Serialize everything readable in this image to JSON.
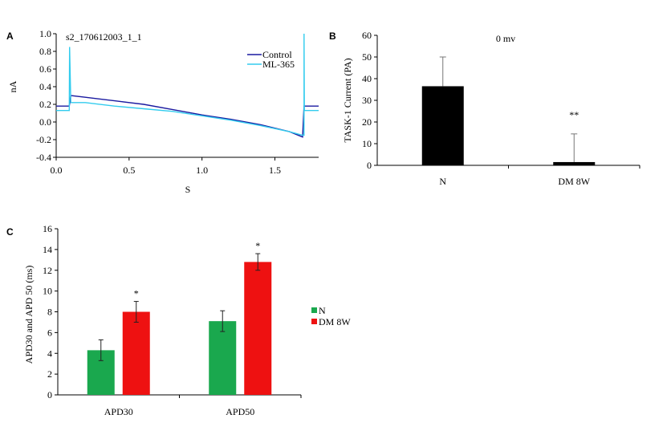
{
  "chart_data": [
    {
      "panel": "A",
      "type": "line",
      "title": "s2_170612003_1_1",
      "xlabel": "S",
      "ylabel": "nA",
      "xlim": [
        0.0,
        1.8
      ],
      "ylim": [
        -0.4,
        1.0
      ],
      "x_ticks": [
        "0.0",
        "0.5",
        "1.0",
        "1.5"
      ],
      "y_ticks": [
        "-0.4",
        "-0.2",
        "0.0",
        "0.2",
        "0.4",
        "0.6",
        "0.8",
        "1.0"
      ],
      "legend_position": "top-right",
      "series": [
        {
          "name": "Control",
          "color": "#1a1aa0",
          "x": [
            0,
            0.09,
            0.1,
            0.2,
            0.4,
            0.6,
            0.8,
            1.0,
            1.2,
            1.4,
            1.6,
            1.69,
            1.7,
            1.8
          ],
          "y": [
            0.18,
            0.18,
            0.3,
            0.28,
            0.24,
            0.2,
            0.14,
            0.08,
            0.03,
            -0.03,
            -0.11,
            -0.17,
            0.18,
            0.18
          ]
        },
        {
          "name": "ML-365",
          "color": "#33ccee",
          "x": [
            0,
            0.09,
            0.09,
            0.092,
            0.1,
            0.2,
            0.4,
            0.6,
            0.8,
            1.0,
            1.2,
            1.4,
            1.6,
            1.69,
            1.7,
            1.7,
            1.702,
            1.71,
            1.8
          ],
          "y": [
            0.13,
            0.13,
            0.13,
            0.85,
            0.22,
            0.22,
            0.18,
            0.15,
            0.12,
            0.07,
            0.02,
            -0.04,
            -0.11,
            -0.15,
            -0.15,
            1.0,
            0.13,
            0.13,
            0.13
          ]
        }
      ]
    },
    {
      "panel": "B",
      "type": "bar",
      "annotation": "0 mv",
      "ylabel": "TASK-1 Current (PA)",
      "ylim": [
        0,
        60
      ],
      "y_ticks": [
        "0",
        "10",
        "20",
        "30",
        "40",
        "50",
        "60"
      ],
      "categories": [
        "N",
        "DM 8W"
      ],
      "values": [
        36.5,
        1.5
      ],
      "errors": [
        13.5,
        13
      ],
      "significance": [
        "",
        "**"
      ],
      "color": "#000000"
    },
    {
      "panel": "C",
      "type": "bar",
      "ylabel": "APD30 and APD 50 (ms)",
      "ylim": [
        0,
        16
      ],
      "y_ticks": [
        "0",
        "2",
        "4",
        "6",
        "8",
        "10",
        "12",
        "14",
        "16"
      ],
      "categories": [
        "APD30",
        "APD50"
      ],
      "legend_position": "right",
      "series": [
        {
          "name": "N",
          "color": "#1aa84e",
          "values": [
            4.3,
            7.1
          ],
          "errors": [
            1.0,
            1.0
          ],
          "significance": [
            "",
            ""
          ]
        },
        {
          "name": "DM 8W",
          "color": "#ee1111",
          "values": [
            8.0,
            12.8
          ],
          "errors": [
            1.0,
            0.8
          ],
          "significance": [
            "*",
            "*"
          ]
        }
      ]
    }
  ],
  "labels": {
    "panel_a": "A",
    "panel_b": "B",
    "panel_c": "C"
  }
}
